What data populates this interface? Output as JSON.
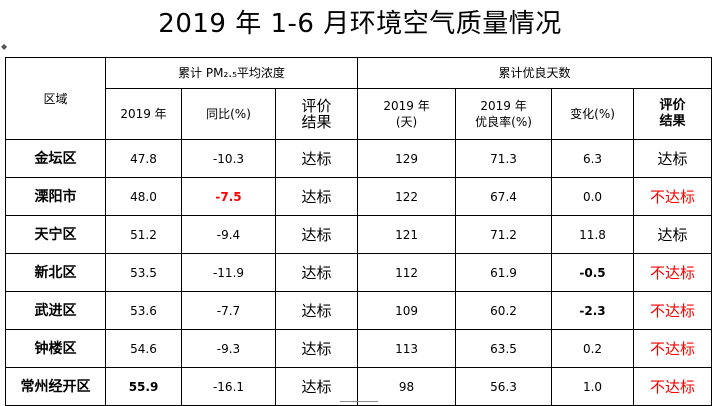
{
  "title": "2019 年 1-6 月环境空气质量情况",
  "corner_mark": "◆",
  "header": {
    "region": "区域",
    "pm_group": "累计 PM₂.₅平均浓度",
    "good_group": "累计优良天数",
    "pm_year": "2019 年",
    "pm_yoy": "同比(%)",
    "pm_eval": "评价\n结果",
    "good_year": "2019 年\n(天)",
    "good_rate": "2019 年\n优良率(%)",
    "good_change": "变化(%)",
    "good_eval": "评价\n结果"
  },
  "rows": [
    {
      "region": "金坛区",
      "pm": "47.8",
      "yoy": "-10.3",
      "pm_eval": "达标",
      "days": "129",
      "rate": "71.3",
      "change": "6.3",
      "eval": "达标"
    },
    {
      "region": "溧阳市",
      "pm": "48.0",
      "yoy": "-7.5",
      "pm_eval": "达标",
      "days": "122",
      "rate": "67.4",
      "change": "0.0",
      "eval": "不达标"
    },
    {
      "region": "天宁区",
      "pm": "51.2",
      "yoy": "-9.4",
      "pm_eval": "达标",
      "days": "121",
      "rate": "71.2",
      "change": "11.8",
      "eval": "达标"
    },
    {
      "region": "新北区",
      "pm": "53.5",
      "yoy": "-11.9",
      "pm_eval": "达标",
      "days": "112",
      "rate": "61.9",
      "change": "-0.5",
      "eval": "不达标"
    },
    {
      "region": "武进区",
      "pm": "53.6",
      "yoy": "-7.7",
      "pm_eval": "达标",
      "days": "109",
      "rate": "60.2",
      "change": "-2.3",
      "eval": "不达标"
    },
    {
      "region": "钟楼区",
      "pm": "54.6",
      "yoy": "-9.3",
      "pm_eval": "达标",
      "days": "113",
      "rate": "63.5",
      "change": "0.2",
      "eval": "不达标"
    },
    {
      "region": "常州经开区",
      "pm": "55.9",
      "yoy": "-16.1",
      "pm_eval": "达标",
      "days": "98",
      "rate": "56.3",
      "change": "1.0",
      "eval": "不达标"
    }
  ],
  "colors": {
    "fail": "#ff0000",
    "text": "#000000",
    "border": "#000000"
  }
}
